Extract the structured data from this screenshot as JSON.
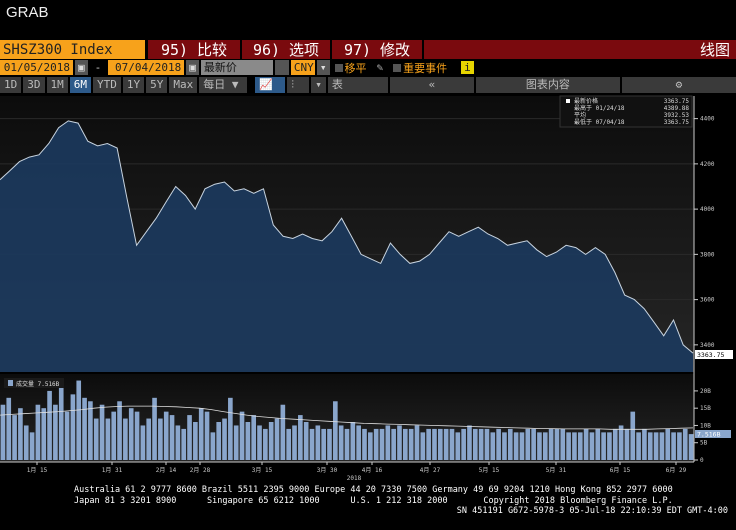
{
  "window_title": "GRAB",
  "toolbar1": {
    "ticker": "SHSZ300 Index",
    "compare": "95) 比较",
    "options": "96) 选项",
    "modify": "97) 修改",
    "chart_type": "线图"
  },
  "toolbar2": {
    "start_date": "01/05/2018",
    "dash": "-",
    "end_date": "07/04/2018",
    "field": "最新价",
    "currency": "CNY",
    "moving_avg": "移平",
    "key_events": "重要事件",
    "info": "i"
  },
  "toolbar3": {
    "periods": [
      "1D",
      "3D",
      "1M",
      "6M",
      "YTD",
      "1Y",
      "5Y",
      "Max"
    ],
    "active_period": "6M",
    "frequency": "每日 ▼",
    "table": "表",
    "collapse": "«",
    "chart_contents": "图表内容",
    "settings": "⚙"
  },
  "legend": [
    {
      "label": "最新价格",
      "value": "3363.75"
    },
    {
      "label": "最高于 01/24/18",
      "value": "4389.88"
    },
    {
      "label": "平均",
      "value": "3932.53"
    },
    {
      "label": "最低于 07/04/18",
      "value": "3363.75"
    }
  ],
  "volume_legend": "成交量 7.516B",
  "volume_last_label": "7.516B",
  "last_price_label": "3363.75",
  "chart_data": {
    "type": "line",
    "title": "SHSZ300 Index",
    "price": {
      "ylim": [
        3280,
        4500
      ],
      "yticks": [
        3400,
        3600,
        3800,
        4000,
        4200,
        4400
      ],
      "values": [
        4130,
        4170,
        4210,
        4230,
        4240,
        4290,
        4360,
        4390,
        4380,
        4300,
        4280,
        4290,
        4270,
        4050,
        3840,
        3900,
        3960,
        4030,
        4100,
        4060,
        4000,
        4090,
        4110,
        4120,
        4080,
        4090,
        4070,
        4090,
        3930,
        3880,
        3870,
        3890,
        3870,
        3860,
        3900,
        3960,
        3880,
        3800,
        3780,
        3760,
        3850,
        3800,
        3760,
        3770,
        3800,
        3850,
        3900,
        3880,
        3900,
        3920,
        3890,
        3870,
        3840,
        3850,
        3860,
        3820,
        3790,
        3810,
        3840,
        3830,
        3800,
        3830,
        3800,
        3720,
        3620,
        3600,
        3560,
        3500,
        3440,
        3510,
        3400,
        3363.75
      ]
    },
    "volume": {
      "ylim": [
        0,
        22
      ],
      "yticks": [
        "0",
        "5B",
        "10B",
        "15B",
        "20B"
      ],
      "unit": "B",
      "values": [
        16,
        18,
        13,
        15,
        10,
        8,
        16,
        15,
        20,
        16,
        22,
        14,
        19,
        23,
        18,
        17,
        12,
        16,
        12,
        14,
        17,
        12,
        15,
        14,
        10,
        12,
        18,
        12,
        14,
        13,
        10,
        9,
        13,
        11,
        15,
        14,
        8,
        11,
        12,
        18,
        10,
        14,
        11,
        13,
        10,
        9,
        11,
        12,
        16,
        9,
        10,
        13,
        11,
        9,
        10,
        9,
        9,
        17,
        10,
        9,
        11,
        10,
        9,
        8,
        9,
        9,
        10,
        9,
        10,
        9,
        9,
        10,
        8,
        9,
        9,
        9,
        9,
        9,
        8,
        9,
        10,
        9,
        9,
        9,
        8,
        9,
        8,
        9,
        8,
        8,
        9,
        9,
        8,
        8,
        9,
        9,
        9,
        8,
        8,
        8,
        9,
        8,
        9,
        8,
        8,
        9,
        10,
        9,
        14,
        8,
        9,
        8,
        8,
        8,
        9,
        8,
        8,
        9,
        7.5
      ],
      "avg": [
        13,
        13.2,
        13.4,
        13.6,
        13.8,
        14,
        14.3,
        14.6,
        15,
        15.3,
        15.5,
        15.6,
        15.6,
        15.6,
        15.5,
        15.4,
        15.2,
        15,
        14.6,
        14,
        13.5,
        13,
        12.6,
        12.3,
        12,
        11.8,
        11.6,
        11.4,
        11.2,
        11,
        10.8,
        10.6,
        10.5,
        10.4,
        10.3,
        10.2,
        10.1,
        10,
        9.9,
        9.8,
        9.7,
        9.6,
        9.5,
        9.4,
        9.3,
        9.2,
        9.1,
        9.1,
        9.0,
        9.0,
        9.0,
        9.0,
        8.9,
        8.9,
        8.9,
        8.9,
        9,
        9.1,
        9.2,
        9.3
      ]
    },
    "xticks": [
      "1月 15",
      "1月 31",
      "2月 14",
      "2月 28",
      "3月 15",
      "3月 30",
      "4月 16",
      "4月 27",
      "5月 15",
      "5月 31",
      "6月 15",
      "6月 29"
    ],
    "xlabel": "2018",
    "colors": {
      "line": "#c8d4e0",
      "fill": "#1c3a5e",
      "bar": "#8aa6cc",
      "avg": "#e0e0e0"
    }
  },
  "footer": {
    "line1": "Australia 61 2 9777 8600 Brazil 5511 2395 9000 Europe 44 20 7330 7500 Germany 49 69 9204 1210 Hong Kong 852 2977 6000",
    "line2": "Japan 81 3 3201 8900      Singapore 65 6212 1000      U.S. 1 212 318 2000       Copyright 2018 Bloomberg Finance L.P.",
    "line3": "SN 451191 G672-5978-3 05-Jul-18 22:10:39 EDT  GMT-4:00"
  }
}
